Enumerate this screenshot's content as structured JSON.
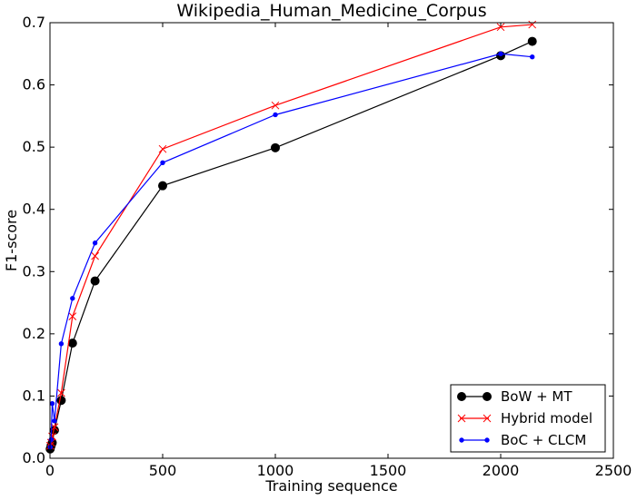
{
  "chart_data": {
    "type": "line",
    "title": "Wikipedia_Human_Medicine_Corpus",
    "xlabel": "Training sequence",
    "ylabel": "F1-score",
    "xlim": [
      0,
      2500
    ],
    "ylim": [
      0,
      0.7
    ],
    "xticks": [
      0,
      500,
      1000,
      1500,
      2000,
      2500
    ],
    "yticks": [
      0.0,
      0.1,
      0.2,
      0.3,
      0.4,
      0.5,
      0.6,
      0.7
    ],
    "xtick_labels": [
      "0",
      "500",
      "1000",
      "1500",
      "2000",
      "2500"
    ],
    "ytick_labels": [
      "0.0",
      "0.1",
      "0.2",
      "0.3",
      "0.4",
      "0.5",
      "0.6",
      "0.7"
    ],
    "grid": false,
    "legend_position": "lower-right",
    "series": [
      {
        "name": "BoW + MT",
        "color": "#000000",
        "marker": "circle",
        "x": [
          1,
          5,
          10,
          20,
          50,
          100,
          200,
          500,
          1000,
          2000,
          2140
        ],
        "y": [
          0.015,
          0.02,
          0.025,
          0.045,
          0.093,
          0.185,
          0.285,
          0.438,
          0.499,
          0.647,
          0.67
        ]
      },
      {
        "name": "Hybrid model",
        "color": "#ff0000",
        "marker": "x",
        "x": [
          1,
          5,
          10,
          20,
          50,
          100,
          200,
          500,
          1000,
          2000,
          2140
        ],
        "y": [
          0.02,
          0.025,
          0.035,
          0.05,
          0.105,
          0.228,
          0.325,
          0.497,
          0.567,
          0.693,
          0.697
        ]
      },
      {
        "name": "BoC + CLCM",
        "color": "#0000ff",
        "marker": "dot",
        "x": [
          1,
          5,
          10,
          20,
          50,
          100,
          200,
          500,
          1000,
          2000,
          2140
        ],
        "y": [
          0.018,
          0.03,
          0.088,
          0.06,
          0.184,
          0.257,
          0.346,
          0.475,
          0.552,
          0.65,
          0.645
        ]
      }
    ]
  }
}
